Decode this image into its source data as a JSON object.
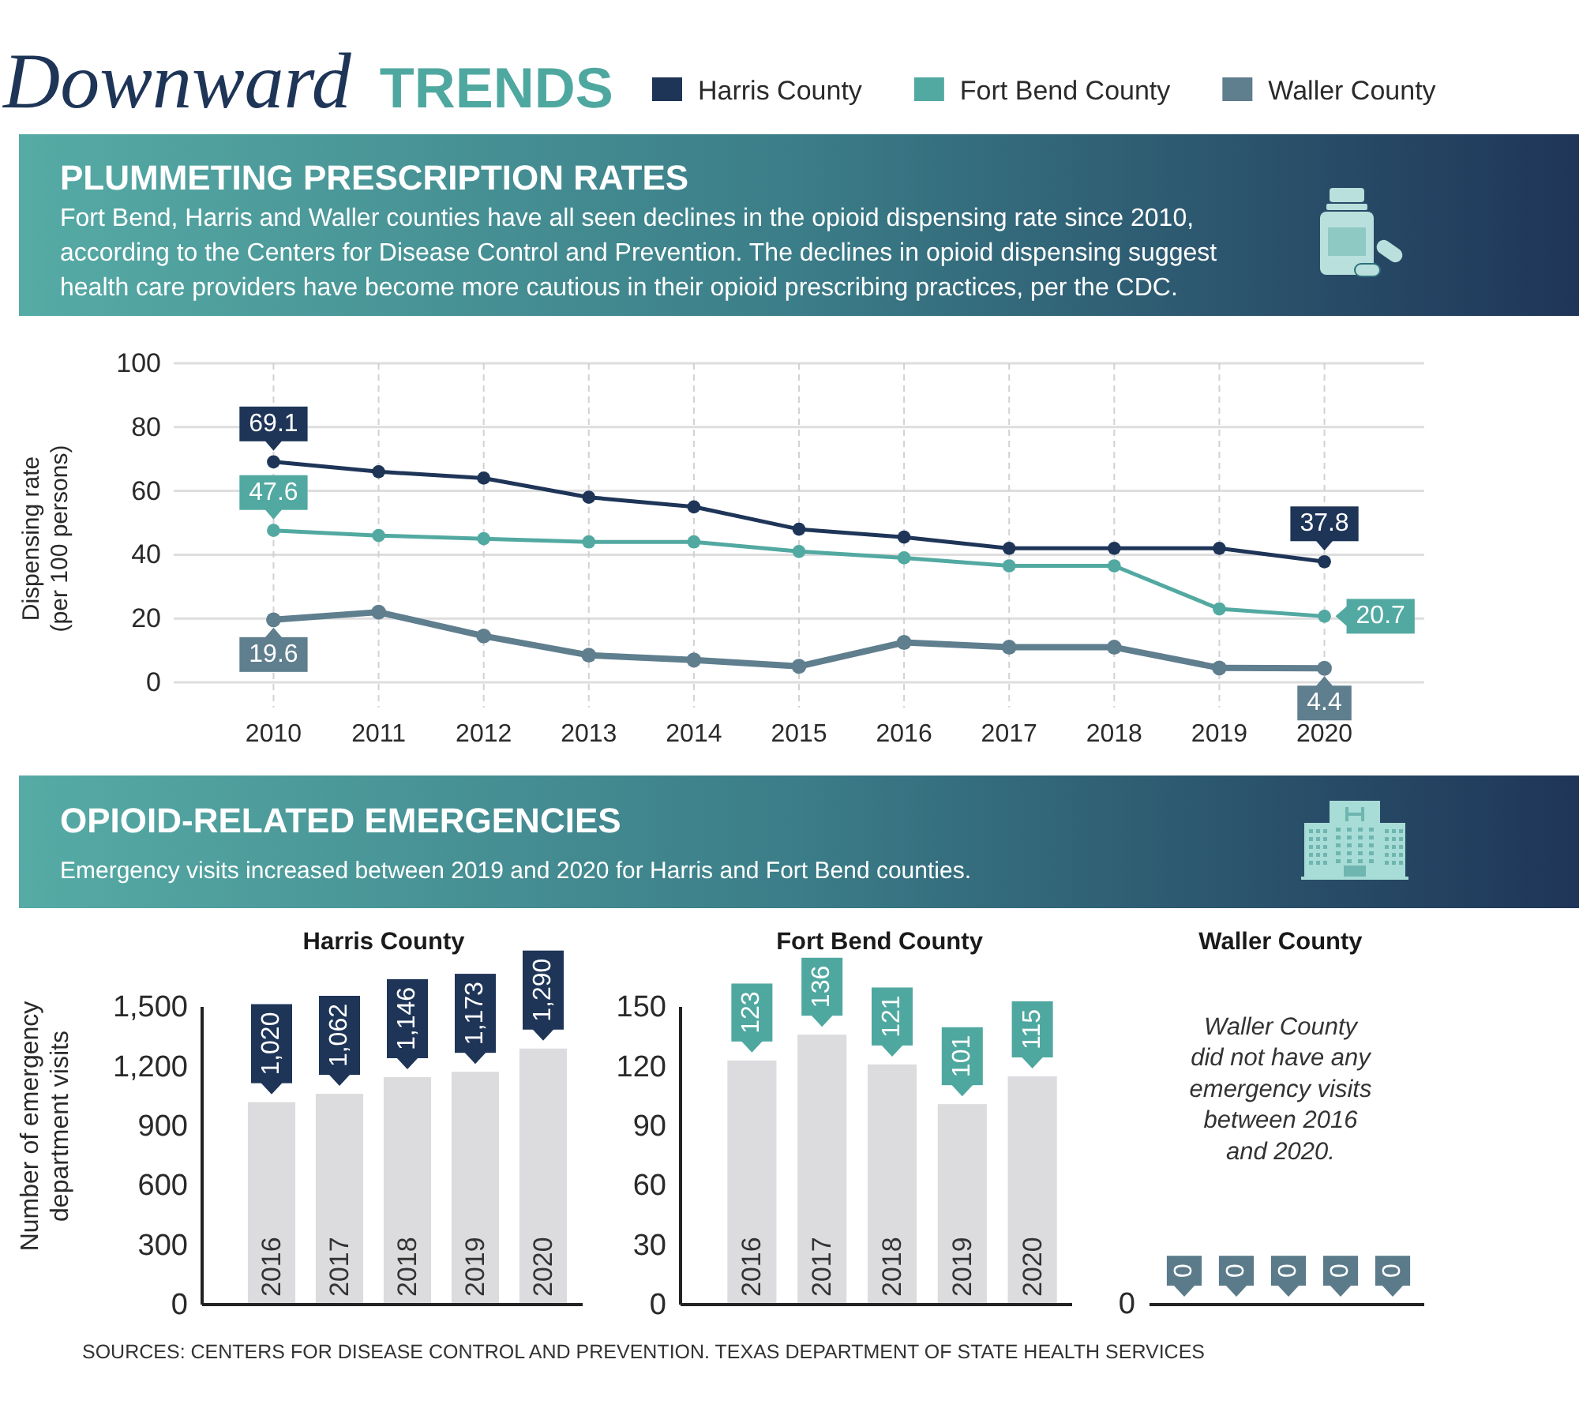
{
  "chart_data": [
    {
      "type": "other",
      "title": "Downward TRENDS"
    },
    {
      "type": "line",
      "title": "PLUMMETING PRESCRIPTION RATES",
      "subtitle": "Fort Bend, Harris and Waller counties have all seen declines in the opioid dispensing rate since 2010, according to the Centers for Disease Control and Prevention. The declines in opioid dispensing suggest health care providers have become more cautious in their opioid prescribing practices, per the CDC.",
      "ylabel": "Dispensing rate (per 100 persons)",
      "categories": [
        "2010",
        "2011",
        "2012",
        "2013",
        "2014",
        "2015",
        "2016",
        "2017",
        "2018",
        "2019",
        "2020"
      ],
      "series": [
        {
          "name": "Harris County",
          "color": "#1e3558",
          "values": [
            69.1,
            66,
            64,
            58,
            55,
            48,
            45.5,
            42,
            42,
            42,
            37.8
          ],
          "value_labels": [
            "69.1",
            null,
            null,
            null,
            null,
            null,
            null,
            null,
            null,
            null,
            "37.8"
          ]
        },
        {
          "name": "Fort Bend County",
          "color": "#52a9a1",
          "values": [
            47.6,
            46,
            45,
            44,
            44,
            41,
            39,
            36.5,
            36.5,
            23,
            20.7
          ],
          "value_labels": [
            "47.6",
            null,
            null,
            null,
            null,
            null,
            null,
            null,
            null,
            null,
            "20.7"
          ]
        },
        {
          "name": "Waller County",
          "color": "#5f7e8e",
          "values": [
            19.6,
            22,
            14.5,
            8.5,
            7,
            5,
            12.5,
            11,
            11,
            4.5,
            4.4
          ],
          "value_labels": [
            "19.6",
            null,
            null,
            null,
            null,
            null,
            null,
            null,
            null,
            null,
            "4.4"
          ]
        }
      ],
      "ylim": [
        0,
        100
      ],
      "yticks": [
        0,
        20,
        40,
        60,
        80,
        100
      ],
      "grid": true,
      "legend": "top",
      "marker": "circle"
    },
    {
      "type": "other",
      "title": "OPIOID-RELATED EMERGENCIES",
      "subtitle": "Emergency visits increased between 2019 and 2020 for Harris and Fort Bend counties."
    },
    {
      "type": "bar",
      "title": "Harris County",
      "ylabel": "Number of emergency department visits",
      "categories": [
        "2016",
        "2017",
        "2018",
        "2019",
        "2020"
      ],
      "values": [
        1020,
        1062,
        1146,
        1173,
        1290
      ],
      "value_labels": [
        "1,020",
        "1,062",
        "1,146",
        "1,173",
        "1,290"
      ],
      "color": "#dcdcde",
      "ylim": [
        0,
        1500
      ],
      "yticks": [
        0,
        300,
        600,
        900,
        {
          "value": 1200,
          "label": "1,200"
        },
        {
          "value": 1500,
          "label": "1,500"
        }
      ]
    },
    {
      "type": "bar",
      "title": "Fort Bend County",
      "categories": [
        "2016",
        "2017",
        "2018",
        "2019",
        "2020"
      ],
      "values": [
        123,
        136,
        121,
        101,
        115
      ],
      "data_labels": true,
      "color": "#dcdcde",
      "ylim": [
        0,
        150
      ],
      "yticks": [
        0,
        30,
        60,
        90,
        120,
        150
      ]
    },
    {
      "type": "other",
      "title": "Waller County",
      "categories": [
        null,
        null,
        null,
        null,
        null
      ],
      "values": [
        0,
        0,
        0,
        0,
        0
      ],
      "data_labels": true,
      "annotations": [
        "Waller County did not have any emergency visits between 2016 and 2020.",
        "0",
        "SOURCES: CENTERS FOR DISEASE CONTROL AND PREVENTION. TEXAS DEPARTMENT OF STATE HEALTH SERVICES"
      ]
    }
  ]
}
